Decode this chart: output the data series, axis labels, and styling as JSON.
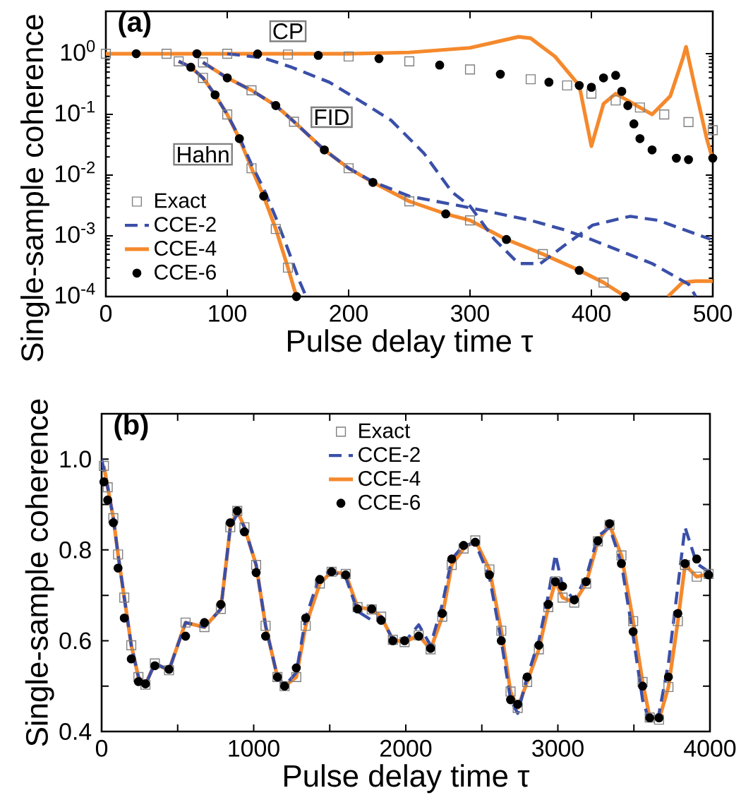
{
  "chart_data": [
    {
      "type": "line",
      "title": "(a)",
      "xlabel": "Pulse delay time τ",
      "ylabel": "Single-sample coherence",
      "log": "y",
      "legend": "bottom left",
      "xlim": [
        0,
        500
      ],
      "ylim": [
        0.0001,
        5
      ],
      "xticks": [
        0,
        100,
        200,
        300,
        400,
        500
      ],
      "yticks": [
        {
          "value": 0.0001,
          "label": "10$^{-4}$"
        },
        {
          "value": 0.001,
          "label": "10$^{-3}$"
        },
        {
          "value": 0.01,
          "label": "10$^{-2}$"
        },
        {
          "value": 0.1,
          "label": "10$^{-1}$"
        },
        {
          "value": 1,
          "label": "10$^{0}$"
        }
      ],
      "annotations": [
        {
          "text": "Hahn",
          "x": 80,
          "y": 0.022
        },
        {
          "text": "FID",
          "x": 186,
          "y": 0.09
        },
        "CP"
      ],
      "series": [
        {
          "name": "Exact",
          "type": "scatter",
          "marker": "square",
          "color": "#808080",
          "x": [
            60,
            80,
            100,
            120,
            140,
            150
          ],
          "values": [
            0.75,
            0.4,
            0.1,
            0.013,
            0.0013,
            0.0003
          ]
        },
        {
          "name": "CCE-2",
          "type": "line",
          "line_style": "dashed",
          "color": "#3a4fa8",
          "x": [
            60,
            70,
            80,
            90,
            100,
            110,
            120,
            130,
            140,
            150,
            160,
            165
          ],
          "values": [
            0.75,
            0.6,
            0.4,
            0.21,
            0.1,
            0.042,
            0.015,
            0.006,
            0.002,
            0.0006,
            0.00017,
            0.0001
          ]
        },
        {
          "name": "CCE-4",
          "type": "line",
          "line_style": "solid",
          "color": "#f5892c",
          "x": [
            60,
            70,
            80,
            90,
            100,
            110,
            120,
            130,
            140,
            150,
            157
          ],
          "values": [
            0.75,
            0.6,
            0.4,
            0.21,
            0.1,
            0.04,
            0.013,
            0.0045,
            0.0013,
            0.0003,
            0.0001
          ]
        },
        {
          "name": "CCE-6",
          "type": "scatter",
          "marker": "circle",
          "color": "#000000",
          "x": [
            70,
            90,
            110,
            130,
            157
          ],
          "values": [
            0.6,
            0.21,
            0.04,
            0.0045,
            0.0001
          ]
        },
        {
          "type": "scatter",
          "marker": "square",
          "color": "#808080",
          "x": [
            80,
            120,
            155,
            200,
            250,
            300,
            360,
            410
          ],
          "values": [
            0.72,
            0.25,
            0.076,
            0.013,
            0.0037,
            0.0018,
            0.0005,
            0.00017
          ]
        },
        {
          "type": "line",
          "line_style": "dashed",
          "color": "#3a4fa8",
          "x": [
            80,
            100,
            120,
            140,
            155,
            180,
            200,
            220,
            250,
            300,
            350,
            378,
            400,
            450,
            480,
            486
          ],
          "values": [
            0.72,
            0.4,
            0.25,
            0.14,
            0.076,
            0.026,
            0.013,
            0.0078,
            0.0045,
            0.0029,
            0.0018,
            0.00125,
            0.00087,
            0.00035,
            0.00016,
            0.0001
          ]
        },
        {
          "type": "line",
          "line_style": "solid",
          "color": "#f5892c",
          "x": [
            80,
            100,
            120,
            140,
            155,
            180,
            200,
            220,
            250,
            280,
            300,
            330,
            360,
            390,
            410,
            428,
            445,
            463,
            475,
            486,
            500
          ],
          "values": [
            0.72,
            0.4,
            0.25,
            0.14,
            0.076,
            0.026,
            0.013,
            0.0076,
            0.0037,
            0.0023,
            0.0018,
            0.00087,
            0.0005,
            0.00027,
            0.00017,
            0.0001,
            null,
            0.0001,
            0.00017,
            0.00018,
            0.00018
          ]
        },
        {
          "type": "scatter",
          "marker": "circle",
          "color": "#000000",
          "x": [
            100,
            140,
            180,
            220,
            280,
            330,
            390,
            428
          ],
          "values": [
            0.4,
            0.14,
            0.026,
            0.0076,
            0.0023,
            0.00087,
            0.00027,
            0.0001
          ]
        },
        {
          "type": "scatter",
          "marker": "square",
          "color": "#808080",
          "x": [
            0,
            50,
            100,
            150,
            200,
            250,
            300,
            350,
            380,
            400,
            420,
            440,
            460,
            480,
            500
          ],
          "values": [
            1.0,
            1.0,
            1.0,
            0.97,
            0.9,
            0.75,
            0.55,
            0.38,
            0.3,
            0.22,
            0.17,
            0.13,
            0.1,
            0.075,
            0.055
          ]
        },
        {
          "type": "line",
          "line_style": "dashed",
          "color": "#3a4fa8",
          "x": [
            100,
            130,
            153,
            184,
            211,
            235,
            262,
            285,
            300,
            320,
            340,
            358,
            378,
            401,
            432,
            455,
            498
          ],
          "values": [
            1.0,
            0.85,
            0.6,
            0.34,
            0.16,
            0.08,
            0.023,
            0.0053,
            0.0031,
            0.00088,
            0.00035,
            0.00035,
            0.0007,
            0.0015,
            0.0021,
            0.0018,
            0.00088
          ]
        },
        {
          "type": "line",
          "line_style": "solid",
          "color": "#f5892c",
          "x": [
            0,
            100,
            200,
            250,
            300,
            340,
            350,
            370,
            390,
            400,
            410,
            420,
            440,
            450,
            465,
            475,
            478,
            485,
            495,
            500
          ],
          "values": [
            1.0,
            1.0,
            1.0,
            1.05,
            1.25,
            1.9,
            1.8,
            0.9,
            0.3,
            0.03,
            0.15,
            0.22,
            0.13,
            0.1,
            0.2,
            0.8,
            1.3,
            0.3,
            0.04,
            0.018
          ]
        },
        {
          "type": "scatter",
          "marker": "circle",
          "color": "#000000",
          "x": [
            25,
            75,
            125,
            175,
            225,
            275,
            325,
            365,
            390,
            400,
            410,
            420,
            425,
            430,
            435,
            440,
            450,
            470,
            480,
            500
          ],
          "values": [
            1.0,
            1.0,
            0.99,
            0.94,
            0.83,
            0.65,
            0.46,
            0.34,
            0.3,
            0.28,
            0.4,
            0.44,
            0.24,
            0.14,
            0.07,
            0.04,
            0.026,
            0.019,
            0.018,
            0.019
          ]
        }
      ]
    },
    {
      "type": "line",
      "title": "(b)",
      "xlabel": "Pulse delay time τ",
      "ylabel": "Single-sample coherence",
      "legend": "top",
      "xlim": [
        0,
        4000
      ],
      "ylim": [
        0.4,
        1.1
      ],
      "xticks": [
        0,
        {
          "value": 500,
          "label": null
        },
        1000,
        {
          "value": 1500,
          "label": null
        },
        2000,
        {
          "value": 2500,
          "label": null
        },
        3000,
        {
          "value": 3500,
          "label": null
        },
        4000
      ],
      "yticks": [
        {
          "value": 0.4,
          "label": "0.4"
        },
        {
          "value": 0.5,
          "label": null
        },
        {
          "value": 0.6,
          "label": "0.6"
        },
        {
          "value": 0.7,
          "label": null
        },
        {
          "value": 0.8,
          "label": "0.8"
        },
        {
          "value": 0.9,
          "label": null
        },
        {
          "value": 1.0,
          "label": "1.0"
        }
      ],
      "series": [
        {
          "name": "Exact",
          "type": "scatter",
          "marker": "square",
          "color": "#808080",
          "x": [
            15,
            40,
            77,
            108,
            149,
            195,
            242,
            288,
            350,
            443,
            552,
            676,
            784,
            846,
            892,
            939,
            1016,
            1078,
            1156,
            1203,
            1280,
            1342,
            1435,
            1512,
            1605,
            1683,
            1776,
            1838,
            1915,
            1992,
            2085,
            2163,
            2240,
            2302,
            2380,
            2457,
            2550,
            2628,
            2689,
            2736,
            2798,
            2875,
            2937,
            2984,
            3031,
            3108,
            3186,
            3263,
            3340,
            3418,
            3495,
            3557,
            3604,
            3665,
            3727,
            3789,
            3836,
            3913,
            3991
          ],
          "values": [
            0.985,
            0.938,
            0.87,
            0.79,
            0.695,
            0.59,
            0.52,
            0.503,
            0.55,
            0.535,
            0.64,
            0.63,
            0.67,
            0.85,
            0.886,
            0.85,
            0.767,
            0.633,
            0.52,
            0.5,
            0.52,
            0.633,
            0.726,
            0.752,
            0.747,
            0.674,
            0.669,
            0.653,
            0.602,
            0.597,
            0.612,
            0.581,
            0.653,
            0.767,
            0.803,
            0.821,
            0.757,
            0.622,
            0.488,
            0.452,
            0.509,
            0.581,
            0.674,
            0.731,
            0.695,
            0.684,
            0.726,
            0.819,
            0.855,
            0.788,
            0.643,
            0.509,
            0.431,
            0.426,
            0.498,
            0.643,
            0.767,
            0.741,
            0.747
          ]
        },
        {
          "name": "CCE-2",
          "type": "line",
          "line_style": "dashed",
          "color": "#3a4fa8",
          "x": [
            0,
            40,
            77,
            108,
            149,
            195,
            242,
            288,
            350,
            443,
            552,
            676,
            784,
            846,
            892,
            939,
            1016,
            1078,
            1156,
            1203,
            1280,
            1342,
            1435,
            1512,
            1605,
            1683,
            1776,
            1838,
            1915,
            1992,
            2085,
            2163,
            2240,
            2302,
            2380,
            2457,
            2550,
            2628,
            2689,
            2736,
            2798,
            2875,
            2937,
            2984,
            3031,
            3108,
            3186,
            3263,
            3340,
            3418,
            3495,
            3557,
            3604,
            3665,
            3727,
            3789,
            3836,
            3913,
            4000
          ],
          "values": [
            1.0,
            0.938,
            0.87,
            0.79,
            0.695,
            0.59,
            0.52,
            0.503,
            0.55,
            0.535,
            0.64,
            0.63,
            0.67,
            0.85,
            0.88,
            0.85,
            0.767,
            0.633,
            0.52,
            0.5,
            0.53,
            0.65,
            0.745,
            0.752,
            0.74,
            0.665,
            0.645,
            0.653,
            0.602,
            0.597,
            0.635,
            0.59,
            0.68,
            0.78,
            0.81,
            0.815,
            0.74,
            0.6,
            0.47,
            0.44,
            0.52,
            0.6,
            0.7,
            0.79,
            0.72,
            0.69,
            0.74,
            0.83,
            0.85,
            0.77,
            0.61,
            0.47,
            0.42,
            0.44,
            0.55,
            0.72,
            0.85,
            0.77,
            0.75
          ]
        },
        {
          "name": "CCE-4",
          "type": "line",
          "line_style": "solid",
          "color": "#f5892c",
          "x": [
            15,
            40,
            77,
            108,
            149,
            195,
            242,
            288,
            350,
            443,
            552,
            676,
            784,
            846,
            892,
            939,
            1016,
            1078,
            1156,
            1203,
            1280,
            1342,
            1435,
            1512,
            1605,
            1683,
            1776,
            1838,
            1915,
            1992,
            2085,
            2163,
            2240,
            2302,
            2380,
            2457,
            2550,
            2628,
            2689,
            2736,
            2798,
            2875,
            2937,
            2984,
            3031,
            3108,
            3186,
            3263,
            3340,
            3418,
            3495,
            3557,
            3604,
            3665,
            3727,
            3789,
            3836,
            3913,
            3991
          ],
          "values": [
            0.985,
            0.938,
            0.87,
            0.79,
            0.695,
            0.59,
            0.52,
            0.503,
            0.55,
            0.535,
            0.64,
            0.63,
            0.67,
            0.85,
            0.886,
            0.85,
            0.767,
            0.633,
            0.52,
            0.5,
            0.52,
            0.633,
            0.726,
            0.752,
            0.747,
            0.674,
            0.669,
            0.653,
            0.602,
            0.597,
            0.612,
            0.581,
            0.653,
            0.767,
            0.803,
            0.821,
            0.757,
            0.622,
            0.488,
            0.452,
            0.509,
            0.581,
            0.674,
            0.731,
            0.695,
            0.684,
            0.726,
            0.819,
            0.855,
            0.788,
            0.643,
            0.509,
            0.431,
            0.426,
            0.498,
            0.643,
            0.767,
            0.741,
            0.747
          ]
        },
        {
          "name": "CCE-6",
          "type": "scatter",
          "marker": "circle",
          "color": "#000000",
          "x": [
            15,
            40,
            77,
            108,
            149,
            195,
            242,
            288,
            350,
            443,
            552,
            676,
            784,
            846,
            892,
            939,
            1016,
            1078,
            1156,
            1203,
            1280,
            1342,
            1435,
            1512,
            1605,
            1683,
            1776,
            1838,
            1915,
            1992,
            2085,
            2163,
            2240,
            2302,
            2380,
            2457,
            2550,
            2628,
            2689,
            2736,
            2798,
            2875,
            2937,
            2984,
            3031,
            3108,
            3186,
            3263,
            3340,
            3418,
            3495,
            3557,
            3604,
            3665,
            3727,
            3789,
            3836,
            3913,
            3991
          ],
          "values": [
            0.95,
            0.91,
            0.86,
            0.76,
            0.65,
            0.56,
            0.51,
            0.505,
            0.545,
            0.537,
            0.61,
            0.64,
            0.68,
            0.86,
            0.886,
            0.84,
            0.75,
            0.61,
            0.52,
            0.5,
            0.54,
            0.65,
            0.735,
            0.752,
            0.745,
            0.67,
            0.67,
            0.645,
            0.6,
            0.6,
            0.61,
            0.583,
            0.66,
            0.78,
            0.81,
            0.817,
            0.745,
            0.6,
            0.47,
            0.46,
            0.52,
            0.59,
            0.68,
            0.73,
            0.72,
            0.69,
            0.73,
            0.82,
            0.858,
            0.77,
            0.62,
            0.5,
            0.43,
            0.43,
            0.52,
            0.66,
            0.77,
            0.78,
            0.745
          ]
        }
      ]
    }
  ]
}
